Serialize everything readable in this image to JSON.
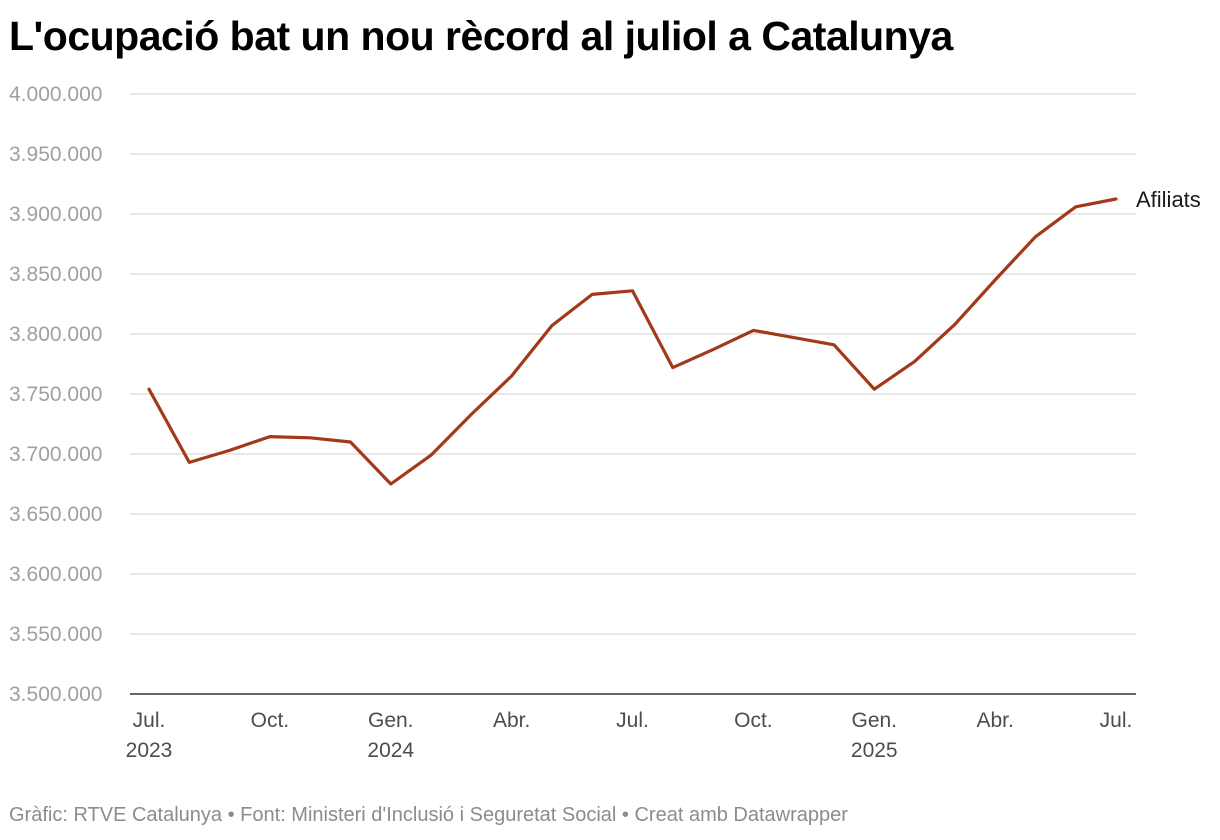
{
  "colors": {
    "line": "#a23a1a",
    "grid": "#e0e0e0",
    "axis": "#333333"
  },
  "footer": "Gràfic: RTVE Catalunya • Font: Ministeri d'Inclusió i Seguretat Social • Creat amb Datawrapper",
  "chart_data": {
    "type": "line",
    "title": "L'ocupació bat un nou rècord al juliol a Catalunya",
    "xlabel": "",
    "ylabel": "",
    "ylim": [
      3500000,
      4000000
    ],
    "grid": true,
    "yticks": [
      3500000,
      3550000,
      3600000,
      3650000,
      3700000,
      3750000,
      3800000,
      3850000,
      3900000,
      3950000,
      4000000
    ],
    "ytick_labels": [
      "3.500.000",
      "3.550.000",
      "3.600.000",
      "3.650.000",
      "3.700.000",
      "3.750.000",
      "3.800.000",
      "3.850.000",
      "3.900.000",
      "3.950.000",
      "4.000.000"
    ],
    "xticks": [
      {
        "x": "2023-07",
        "label": "Jul.",
        "sublabel": "2023"
      },
      {
        "x": "2023-10",
        "label": "Oct.",
        "sublabel": ""
      },
      {
        "x": "2024-01",
        "label": "Gen.",
        "sublabel": "2024"
      },
      {
        "x": "2024-04",
        "label": "Abr.",
        "sublabel": ""
      },
      {
        "x": "2024-07",
        "label": "Jul.",
        "sublabel": ""
      },
      {
        "x": "2024-10",
        "label": "Oct.",
        "sublabel": ""
      },
      {
        "x": "2025-01",
        "label": "Gen.",
        "sublabel": "2025"
      },
      {
        "x": "2025-04",
        "label": "Abr.",
        "sublabel": ""
      },
      {
        "x": "2025-07",
        "label": "Jul.",
        "sublabel": ""
      }
    ],
    "x": [
      "2023-07",
      "2023-08",
      "2023-09",
      "2023-10",
      "2023-11",
      "2023-12",
      "2024-01",
      "2024-02",
      "2024-03",
      "2024-04",
      "2024-05",
      "2024-06",
      "2024-07",
      "2024-08",
      "2024-09",
      "2024-10",
      "2024-11",
      "2024-12",
      "2025-01",
      "2025-02",
      "2025-03",
      "2025-04",
      "2025-05",
      "2025-06",
      "2025-07"
    ],
    "series": [
      {
        "name": "Afiliats",
        "values": [
          3754000,
          3693000,
          3703000,
          3714500,
          3713500,
          3710000,
          3675000,
          3699000,
          3733000,
          3765000,
          3807000,
          3833000,
          3836000,
          3772000,
          3787000,
          3803000,
          3797000,
          3791000,
          3754000,
          3777000,
          3808000,
          3845000,
          3881000,
          3906000,
          3912500
        ]
      }
    ]
  }
}
